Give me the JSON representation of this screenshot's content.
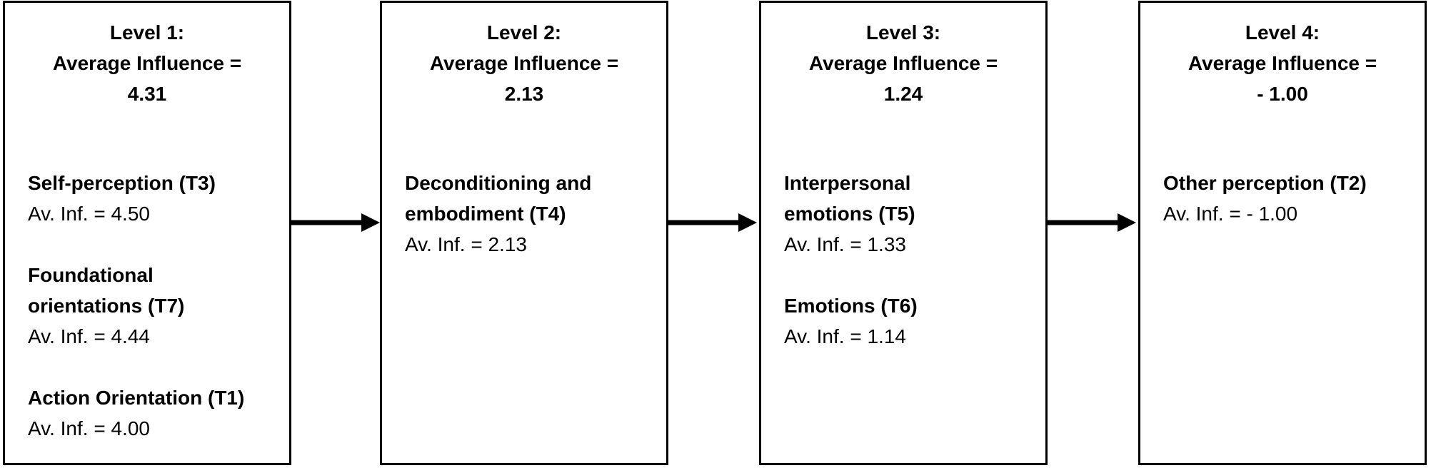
{
  "levels": [
    {
      "label": "Level 1:",
      "avg_label": "Average Influence =",
      "avg_value": "4.31",
      "themes": [
        {
          "title": "Self-perception (T3)",
          "value": "Av. Inf. = 4.50"
        },
        {
          "title": "Foundational orientations (T7)",
          "value": "Av. Inf. = 4.44"
        },
        {
          "title": "Action Orientation (T1)",
          "value": "Av. Inf. = 4.00"
        }
      ]
    },
    {
      "label": "Level 2:",
      "avg_label": "Average Influence =",
      "avg_value": "2.13",
      "themes": [
        {
          "title": "Deconditioning and embodiment (T4)",
          "value": "Av. Inf. = 2.13"
        }
      ]
    },
    {
      "label": "Level 3:",
      "avg_label": "Average Influence =",
      "avg_value": "1.24",
      "themes": [
        {
          "title": "Interpersonal emotions (T5)",
          "value": "Av. Inf. = 1.33"
        },
        {
          "title": "Emotions (T6)",
          "value": "Av. Inf. = 1.14"
        }
      ]
    },
    {
      "label": "Level 4:",
      "avg_label": "Average Influence =",
      "avg_value": "- 1.00",
      "themes": [
        {
          "title": "Other perception (T2)",
          "value": "Av. Inf. = - 1.00"
        }
      ]
    }
  ],
  "colors": {
    "border": "#000000",
    "arrow": "#000000",
    "background": "#ffffff"
  }
}
